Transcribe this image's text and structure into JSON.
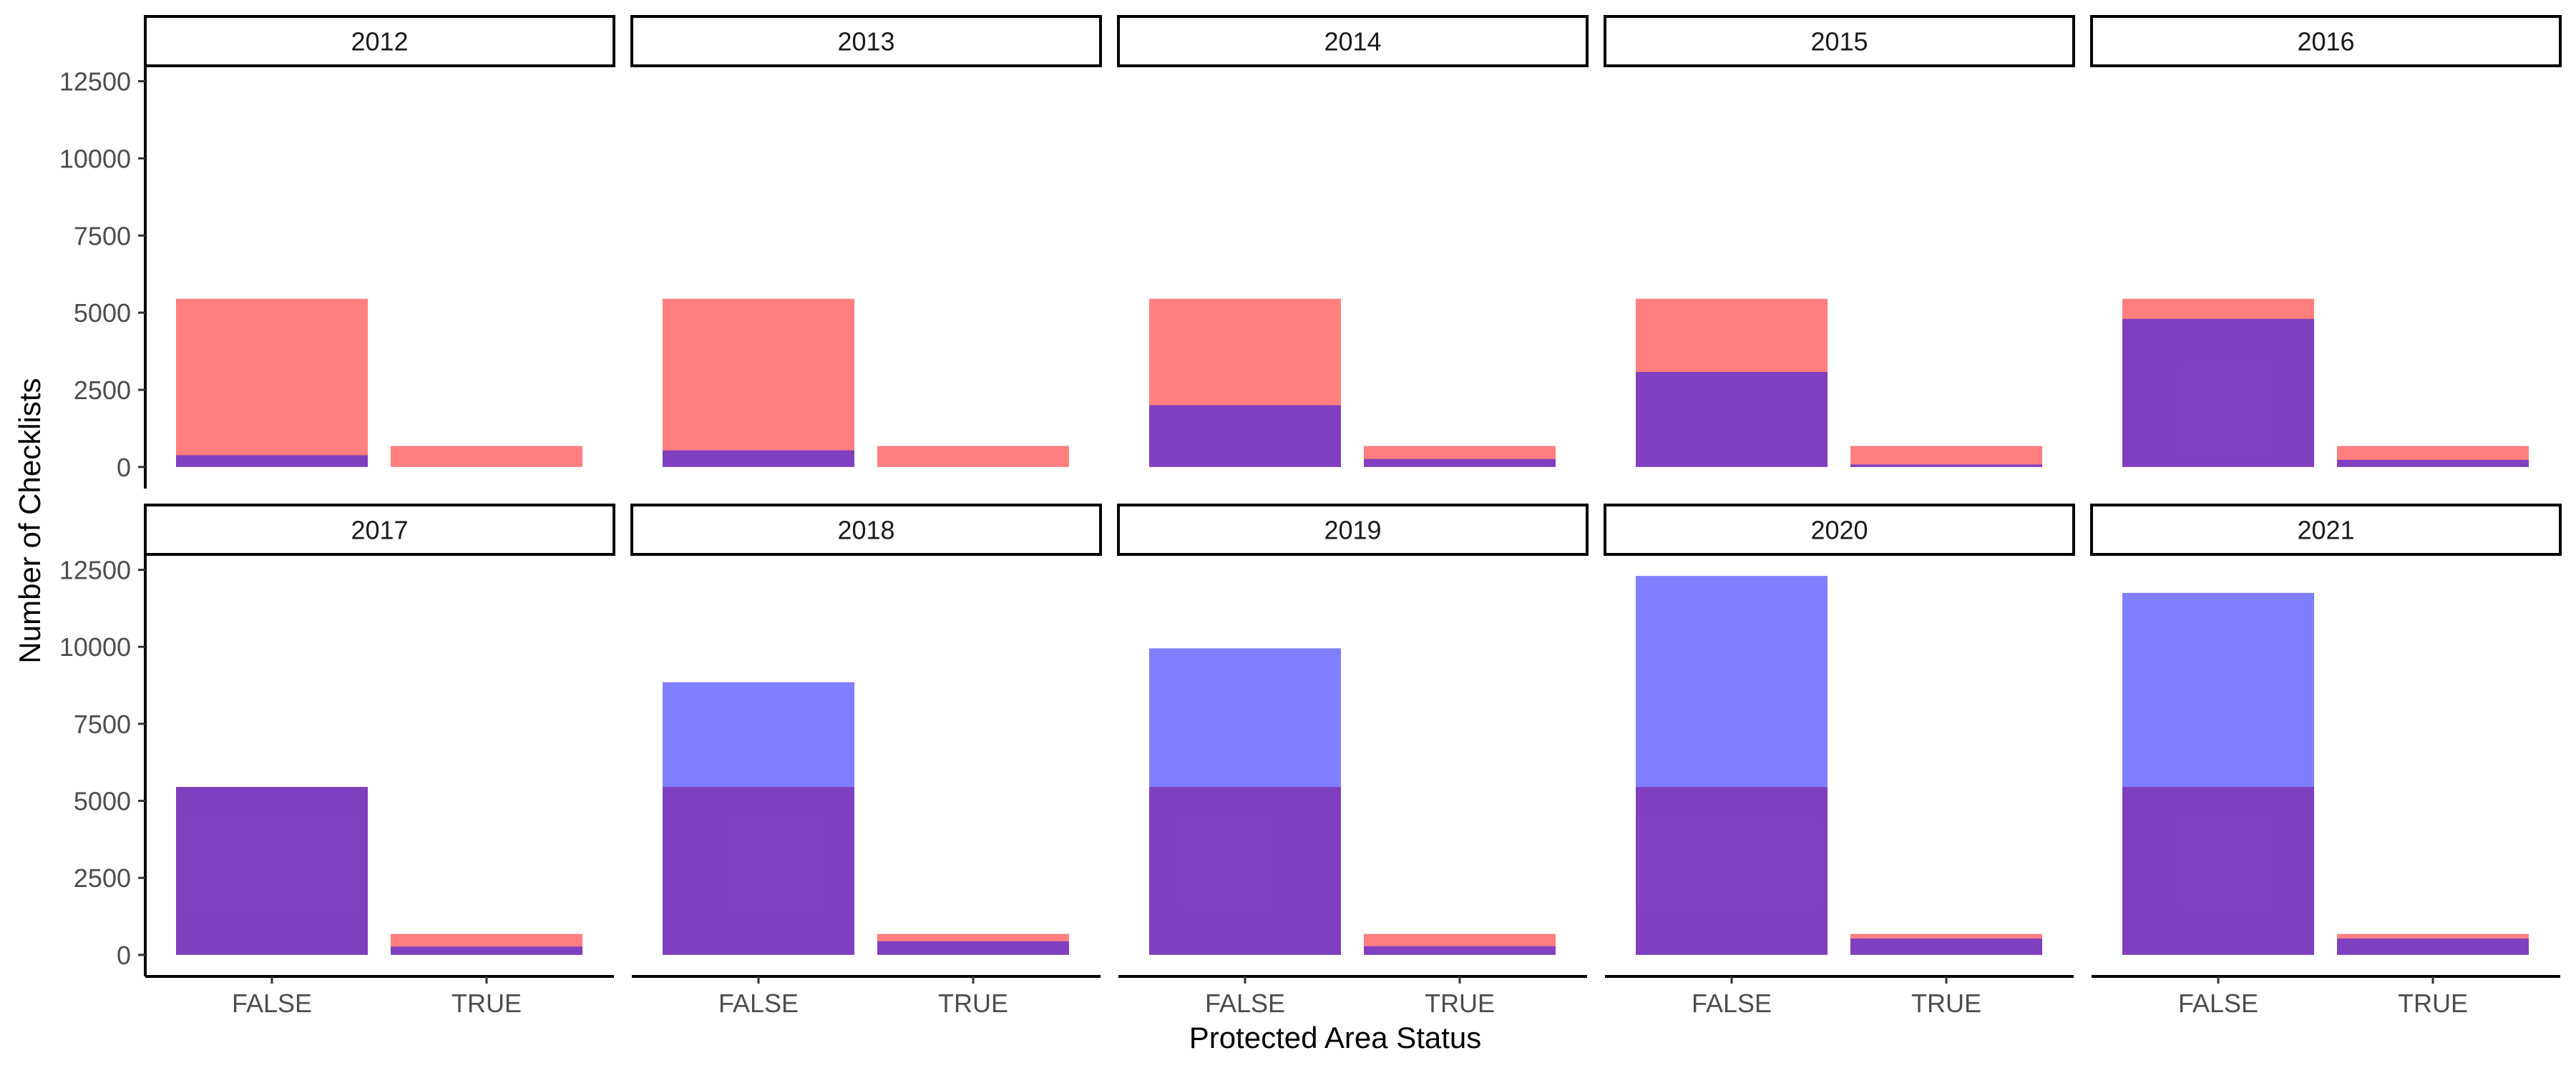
{
  "chart_data": {
    "type": "bar",
    "xlabel": "Protected Area Status",
    "ylabel": "Number of Checklists",
    "categories": [
      "FALSE",
      "TRUE"
    ],
    "y_ticks": [
      0,
      2500,
      5000,
      7500,
      10000,
      12500
    ],
    "ylim": [
      -700,
      13000
    ],
    "facet_layout": {
      "rows": 2,
      "cols": 5
    },
    "colors": {
      "reference": "#ff0000",
      "reference_alpha": 0.5,
      "observed": "#0000ff",
      "observed_alpha": 0.5
    },
    "facets": [
      {
        "year": "2012",
        "reference": [
          5450,
          680
        ],
        "observed": [
          380,
          0
        ]
      },
      {
        "year": "2013",
        "reference": [
          5450,
          680
        ],
        "observed": [
          540,
          0
        ]
      },
      {
        "year": "2014",
        "reference": [
          5450,
          680
        ],
        "observed": [
          2000,
          260
        ]
      },
      {
        "year": "2015",
        "reference": [
          5450,
          680
        ],
        "observed": [
          3080,
          80
        ]
      },
      {
        "year": "2016",
        "reference": [
          5450,
          680
        ],
        "observed": [
          4800,
          230
        ]
      },
      {
        "year": "2017",
        "reference": [
          5450,
          680
        ],
        "observed": [
          5450,
          270
        ]
      },
      {
        "year": "2018",
        "reference": [
          5450,
          680
        ],
        "observed": [
          8850,
          440
        ]
      },
      {
        "year": "2019",
        "reference": [
          5450,
          680
        ],
        "observed": [
          9950,
          280
        ]
      },
      {
        "year": "2020",
        "reference": [
          5450,
          680
        ],
        "observed": [
          12300,
          530
        ]
      },
      {
        "year": "2021",
        "reference": [
          5450,
          680
        ],
        "observed": [
          11750,
          530
        ]
      }
    ]
  }
}
